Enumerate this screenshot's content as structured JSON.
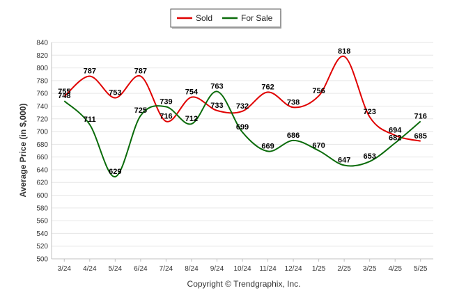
{
  "chart_data": {
    "type": "line",
    "title": "",
    "xlabel": "",
    "ylabel": "Average Price (in $,000)",
    "categories": [
      "3/24",
      "4/24",
      "5/24",
      "6/24",
      "7/24",
      "8/24",
      "9/24",
      "10/24",
      "11/24",
      "12/24",
      "1/25",
      "2/25",
      "3/25",
      "4/25",
      "5/25"
    ],
    "ylim": [
      500,
      840
    ],
    "ytick_step": 20,
    "grid": true,
    "legend_position": "top-center",
    "series": [
      {
        "name": "Sold",
        "color": "#e00000",
        "values": [
          755,
          787,
          753,
          787,
          716,
          754,
          733,
          732,
          762,
          738,
          756,
          818,
          723,
          694,
          685
        ]
      },
      {
        "name": "For Sale",
        "color": "#0a6b0a",
        "values": [
          748,
          711,
          629,
          725,
          739,
          712,
          763,
          699,
          669,
          686,
          670,
          647,
          653,
          682,
          716
        ]
      }
    ]
  },
  "footer": {
    "copyright": "Copyright © Trendgraphix, Inc."
  }
}
